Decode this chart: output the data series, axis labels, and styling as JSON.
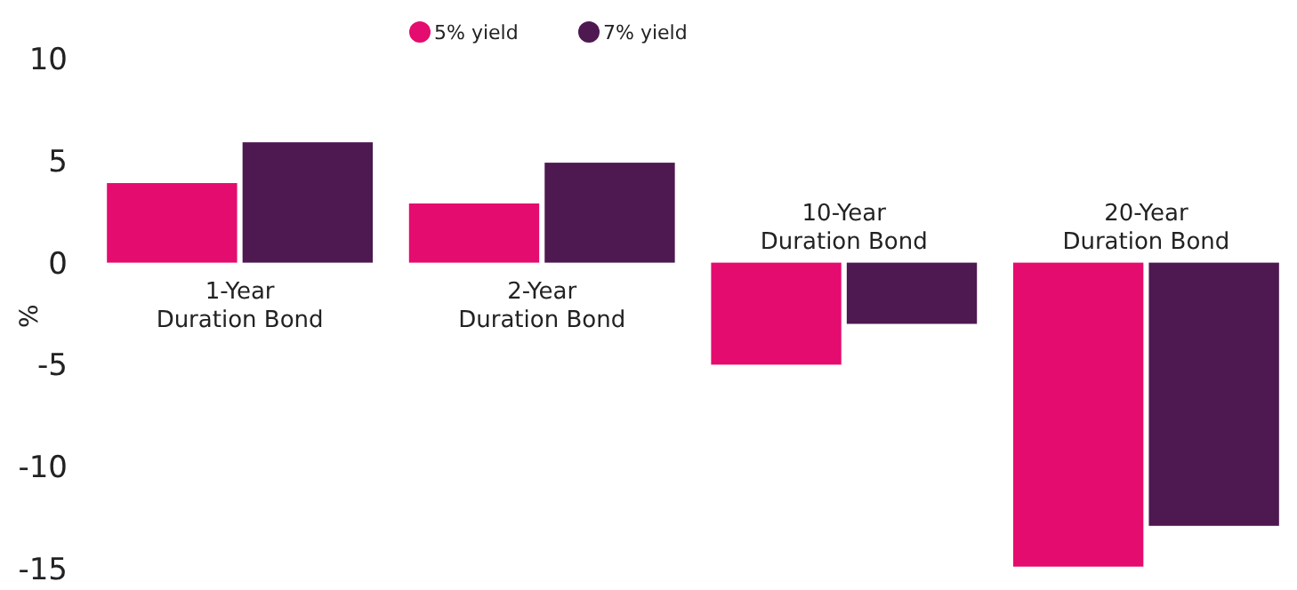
{
  "chart_data": {
    "type": "bar",
    "ylabel": "%",
    "categories": [
      "1-Year\nDuration Bond",
      "2-Year\nDuration Bond",
      "10-Year\nDuration Bond",
      "20-Year\nDuration Bond"
    ],
    "series": [
      {
        "name": "5% yield",
        "color": "#e40c6f",
        "values": [
          3.9,
          2.9,
          -5,
          -14.9
        ]
      },
      {
        "name": "7% yield",
        "color": "#4e1850",
        "values": [
          5.9,
          4.9,
          -3,
          -12.9
        ]
      }
    ],
    "ylim": [
      -15,
      10
    ],
    "yticks": [
      -15,
      -10,
      -5,
      0,
      5,
      10
    ],
    "grid": false,
    "legend": "top"
  }
}
